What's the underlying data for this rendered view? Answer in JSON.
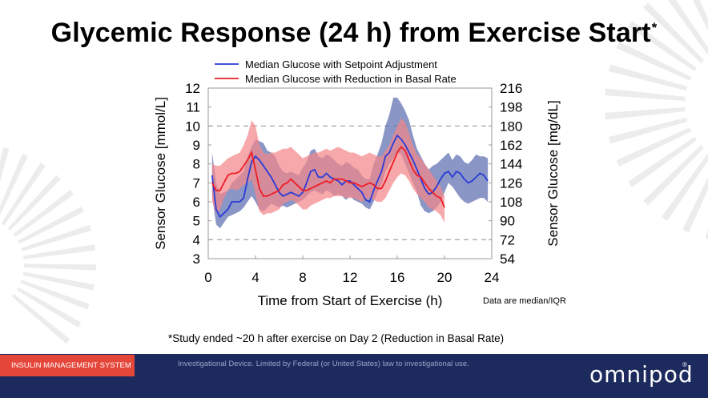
{
  "slide": {
    "title": "Glycemic Response (24 h) from Exercise Start",
    "title_mark": "*",
    "footnote": "*Study ended ~20 h after exercise on Day 2 (Reduction in Basal Rate)",
    "footer_tag": "INSULIN MANAGEMENT SYSTEM",
    "footer_disclaimer": "Investigational Device. Limited by Federal (or United States) law to investigational use.",
    "logo": "omnipod",
    "logo_mark": "®"
  },
  "colors": {
    "blue": "#2a3bd6",
    "blue_band": "#5d6eae",
    "red": "#ee1c25",
    "red_band": "#f4868b",
    "footer": "#1d2a5e",
    "footer_tag": "#e5463a"
  },
  "chart_data": {
    "type": "line",
    "xlabel": "Time from Start of Exercise (h)",
    "ylabel": "Sensor Glucose [mmol/L]",
    "y2label": "Sensor Glucose [mg/dL]",
    "note": "Data are median/IQR",
    "xlim": [
      0,
      24
    ],
    "ylim": [
      3,
      12
    ],
    "y2lim": [
      54,
      216
    ],
    "xticks": [
      "0",
      "4",
      "8",
      "12",
      "16",
      "20",
      "24"
    ],
    "yticks": [
      "3",
      "4",
      "5",
      "6",
      "7",
      "8",
      "9",
      "10",
      "11",
      "12"
    ],
    "y2ticks": [
      "54",
      "72",
      "90",
      "108",
      "126",
      "144",
      "162",
      "180",
      "198",
      "216"
    ],
    "reference_lines": [
      4,
      10
    ],
    "legend_position": "top",
    "series": [
      {
        "name": "Median Glucose with Setpoint Adjustment",
        "x": [
          0.33,
          0.67,
          1,
          1.33,
          1.67,
          2,
          2.33,
          2.67,
          3,
          3.33,
          3.67,
          4,
          4.33,
          4.67,
          5,
          5.33,
          5.67,
          6,
          6.33,
          6.67,
          7,
          7.33,
          7.67,
          8,
          8.33,
          8.67,
          9,
          9.33,
          9.67,
          10,
          10.33,
          10.67,
          11,
          11.33,
          11.67,
          12,
          12.33,
          12.67,
          13,
          13.33,
          13.67,
          14,
          14.33,
          14.67,
          15,
          15.33,
          15.67,
          16,
          16.33,
          16.67,
          17,
          17.33,
          17.67,
          18,
          18.33,
          18.67,
          19,
          19.33,
          19.67,
          20,
          20.33,
          20.67,
          21,
          21.33,
          21.67,
          22,
          22.33,
          22.67,
          23,
          23.33,
          23.67
        ],
        "median": [
          7.4,
          5.6,
          5.2,
          5.4,
          5.6,
          6.0,
          6.0,
          6.0,
          6.2,
          7.2,
          8.1,
          8.4,
          8.2,
          7.9,
          7.6,
          7.3,
          6.9,
          6.5,
          6.3,
          6.4,
          6.5,
          6.4,
          6.3,
          6.5,
          7.0,
          7.6,
          7.7,
          7.3,
          7.3,
          7.5,
          7.3,
          7.2,
          7.1,
          6.9,
          7.1,
          7.1,
          6.9,
          6.7,
          6.5,
          6.1,
          6.0,
          6.6,
          7.1,
          7.6,
          8.4,
          8.6,
          9.1,
          9.5,
          9.3,
          9.0,
          8.6,
          8.2,
          7.7,
          7.2,
          6.7,
          6.4,
          6.5,
          6.8,
          7.2,
          7.5,
          7.6,
          7.3,
          7.6,
          7.5,
          7.2,
          7.0,
          7.1,
          7.3,
          7.5,
          7.4,
          7.1
        ],
        "q1": [
          6.3,
          4.8,
          4.6,
          4.9,
          5.2,
          5.3,
          5.4,
          5.5,
          5.7,
          6.0,
          6.3,
          6.0,
          5.6,
          5.5,
          5.7,
          5.9,
          5.8,
          5.7,
          5.8,
          5.7,
          5.8,
          5.9,
          6.0,
          6.1,
          6.3,
          6.5,
          6.6,
          6.5,
          6.4,
          6.6,
          6.5,
          6.3,
          6.4,
          6.3,
          6.1,
          6.3,
          6.1,
          6.0,
          5.9,
          5.7,
          5.6,
          6.0,
          6.5,
          6.9,
          7.6,
          8.0,
          8.3,
          8.6,
          8.5,
          8.0,
          7.5,
          7.0,
          6.5,
          5.8,
          5.5,
          5.4,
          5.5,
          5.7,
          6.0,
          6.5,
          7.0,
          6.8,
          6.5,
          6.2,
          6.0,
          5.9,
          6.0,
          6.1,
          6.2,
          6.2,
          6.0
        ],
        "q3": [
          8.6,
          7.0,
          6.4,
          6.5,
          6.6,
          7.0,
          7.2,
          7.4,
          7.6,
          8.4,
          8.9,
          9.3,
          9.2,
          9.1,
          8.7,
          8.6,
          8.4,
          7.9,
          7.6,
          7.5,
          7.6,
          7.5,
          7.4,
          7.8,
          8.1,
          8.7,
          8.8,
          8.4,
          8.3,
          8.5,
          8.4,
          8.2,
          8.0,
          7.9,
          8.1,
          8.0,
          7.8,
          7.7,
          7.4,
          7.2,
          7.2,
          8.0,
          8.5,
          9.1,
          10.0,
          10.6,
          11.5,
          11.5,
          11.2,
          10.8,
          10.3,
          9.5,
          8.8,
          8.4,
          8.0,
          7.7,
          7.9,
          8.0,
          8.2,
          8.4,
          8.6,
          8.2,
          8.5,
          8.4,
          8.1,
          8.0,
          8.2,
          8.5,
          8.4,
          8.4,
          8.3
        ]
      },
      {
        "name": "Median Glucose with Reduction in Basal Rate",
        "x": [
          0.33,
          0.67,
          1,
          1.33,
          1.67,
          2,
          2.33,
          2.67,
          3,
          3.33,
          3.67,
          4,
          4.33,
          4.67,
          5,
          5.33,
          5.67,
          6,
          6.33,
          6.67,
          7,
          7.33,
          7.67,
          8,
          8.33,
          8.67,
          9,
          9.33,
          9.67,
          10,
          10.33,
          10.67,
          11,
          11.33,
          11.67,
          12,
          12.33,
          12.67,
          13,
          13.33,
          13.67,
          14,
          14.33,
          14.67,
          15,
          15.33,
          15.67,
          16,
          16.33,
          16.67,
          17,
          17.33,
          17.67,
          18,
          18.33,
          18.67,
          19,
          19.33,
          19.67,
          20
        ],
        "median": [
          7.0,
          6.6,
          6.6,
          7.0,
          7.4,
          7.5,
          7.5,
          7.6,
          7.9,
          8.2,
          8.6,
          7.7,
          6.7,
          6.3,
          6.3,
          6.4,
          6.5,
          6.6,
          6.9,
          7.0,
          7.2,
          7.0,
          6.8,
          6.6,
          6.6,
          6.7,
          6.8,
          6.9,
          7.0,
          7.1,
          7.0,
          7.2,
          7.2,
          7.2,
          7.1,
          7.0,
          7.0,
          6.9,
          6.8,
          6.9,
          7.0,
          6.9,
          6.7,
          6.7,
          7.1,
          7.6,
          8.1,
          8.6,
          8.9,
          8.7,
          8.2,
          7.7,
          7.4,
          7.3,
          7.0,
          6.7,
          6.5,
          6.3,
          6.2,
          5.7
        ],
        "q1": [
          6.0,
          5.4,
          5.6,
          6.2,
          6.6,
          6.7,
          6.6,
          6.7,
          6.9,
          7.0,
          7.2,
          6.4,
          5.5,
          5.3,
          5.4,
          5.4,
          5.5,
          5.6,
          5.9,
          6.0,
          6.1,
          6.0,
          5.8,
          5.6,
          5.6,
          5.8,
          5.9,
          6.0,
          6.1,
          6.2,
          6.2,
          6.3,
          6.3,
          6.3,
          6.2,
          6.2,
          6.2,
          6.1,
          6.0,
          6.1,
          6.2,
          6.1,
          6.0,
          6.0,
          6.2,
          6.6,
          7.0,
          7.3,
          7.5,
          7.4,
          7.1,
          6.7,
          6.4,
          6.2,
          6.0,
          5.7,
          5.6,
          5.5,
          5.3,
          4.9
        ],
        "q3": [
          8.0,
          7.9,
          7.9,
          8.1,
          8.3,
          8.4,
          8.5,
          8.6,
          9.0,
          9.5,
          10.3,
          10.0,
          9.0,
          8.6,
          8.5,
          8.6,
          8.6,
          8.7,
          8.8,
          8.8,
          8.9,
          8.7,
          8.5,
          8.3,
          8.4,
          8.5,
          8.6,
          8.6,
          8.7,
          8.8,
          8.7,
          8.8,
          8.9,
          8.8,
          8.7,
          8.6,
          8.6,
          8.5,
          8.4,
          8.5,
          8.6,
          8.5,
          8.4,
          8.4,
          8.7,
          9.0,
          9.5,
          10.0,
          10.4,
          10.2,
          9.6,
          9.0,
          8.5,
          8.3,
          8.0,
          7.7,
          7.4,
          7.1,
          6.8,
          6.3
        ]
      }
    ]
  }
}
